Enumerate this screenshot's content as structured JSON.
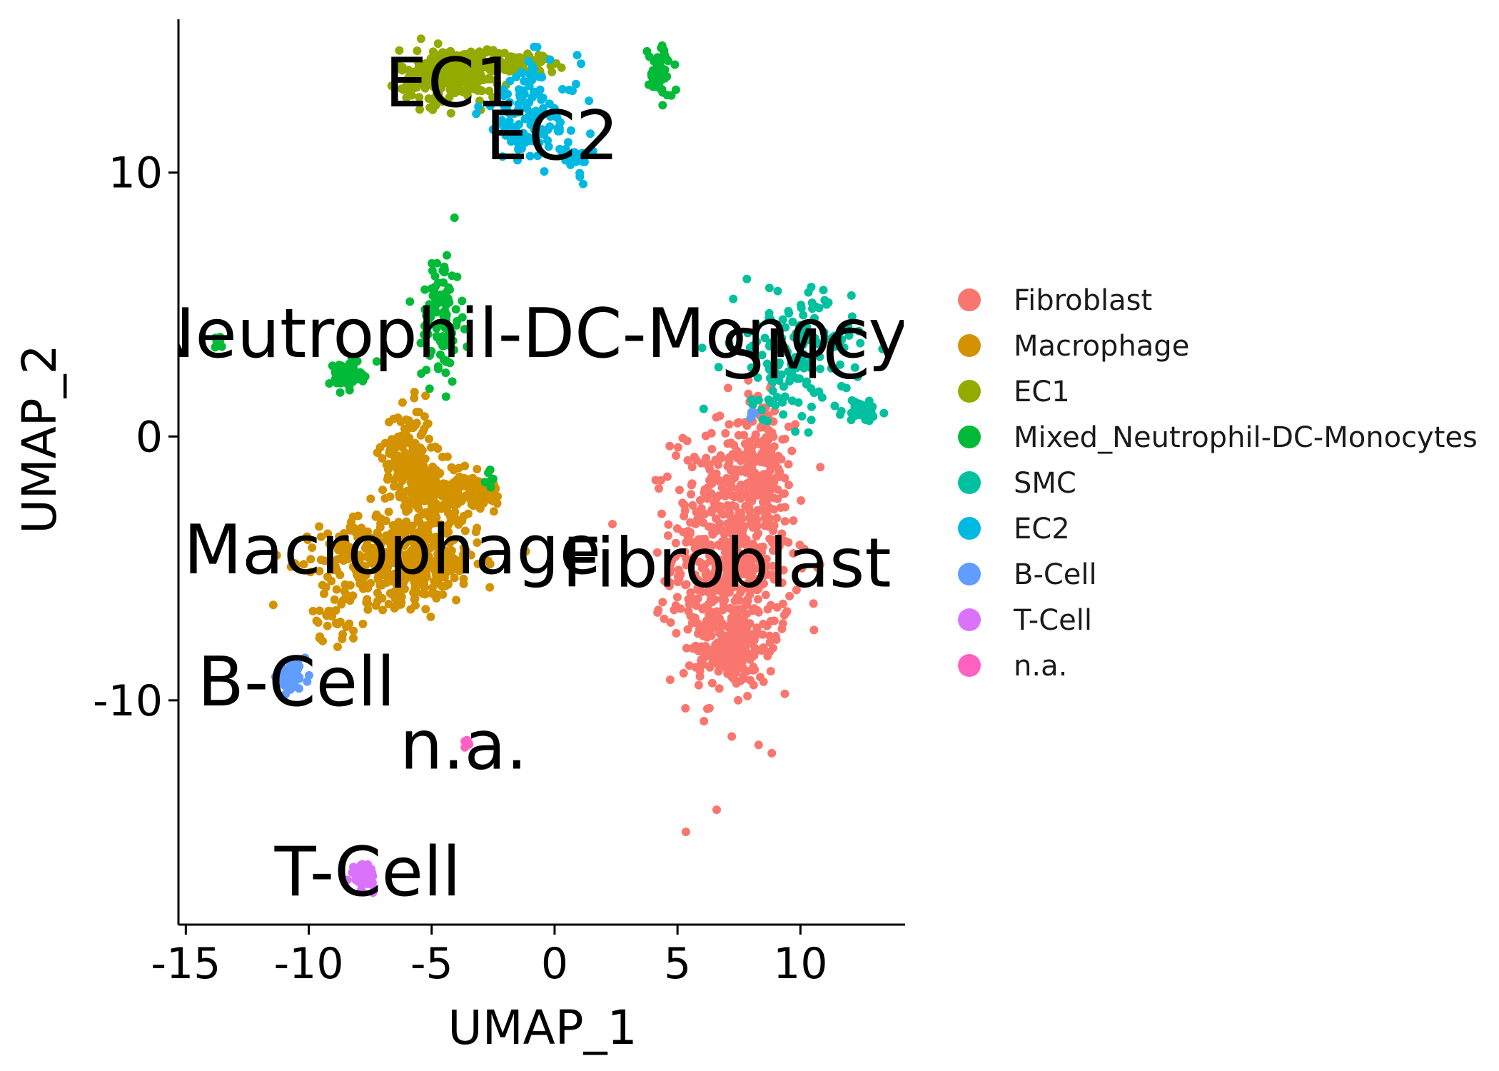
{
  "chart_data": {
    "type": "scatter",
    "xlabel": "UMAP_1",
    "ylabel": "UMAP_2",
    "xlim": [
      -15.3,
      14.2
    ],
    "ylim": [
      -18.5,
      16.0
    ],
    "x_ticks": [
      {
        "value": -15,
        "label": "-15"
      },
      {
        "value": -10,
        "label": "-10"
      },
      {
        "value": -5,
        "label": "-5"
      },
      {
        "value": 0,
        "label": "0"
      },
      {
        "value": 5,
        "label": "5"
      },
      {
        "value": 10,
        "label": "10"
      }
    ],
    "y_ticks": [
      {
        "value": -10,
        "label": "-10"
      },
      {
        "value": 0,
        "label": "0"
      },
      {
        "value": 10,
        "label": "10"
      }
    ],
    "grid": false,
    "legend_position": "right",
    "series": [
      {
        "name": "Fibroblast",
        "color": "#F8766D"
      },
      {
        "name": "Macrophage",
        "color": "#D39200"
      },
      {
        "name": "EC1",
        "color": "#93AA00"
      },
      {
        "name": "Mixed_Neutrophil-DC-Monocytes",
        "color": "#00BA38"
      },
      {
        "name": "SMC",
        "color": "#00C19F"
      },
      {
        "name": "EC2",
        "color": "#00B9E3"
      },
      {
        "name": "B-Cell",
        "color": "#619CFF"
      },
      {
        "name": "T-Cell",
        "color": "#DB72FB"
      },
      {
        "name": "n.a.",
        "color": "#FF61C3"
      }
    ],
    "clusters": [
      {
        "series": 0,
        "cx": 7.2,
        "cy": -4.5,
        "sx": 1.2,
        "sy": 2.5,
        "n": 700
      },
      {
        "series": 0,
        "cx": 8.4,
        "cy": -1.0,
        "sx": 0.5,
        "sy": 1.3,
        "n": 120
      },
      {
        "series": 0,
        "cx": 7.2,
        "cy": -8.0,
        "sx": 0.7,
        "sy": 0.7,
        "n": 140
      },
      {
        "series": 1,
        "cx": -6.3,
        "cy": -4.7,
        "sx": 1.6,
        "sy": 0.8,
        "n": 450
      },
      {
        "series": 1,
        "cx": -6.0,
        "cy": -0.7,
        "sx": 0.5,
        "sy": 0.9,
        "n": 160
      },
      {
        "series": 1,
        "cx": -4.8,
        "cy": -2.2,
        "sx": 0.7,
        "sy": 0.6,
        "n": 160
      },
      {
        "series": 1,
        "cx": -3.2,
        "cy": -2.1,
        "sx": 0.5,
        "sy": 0.3,
        "n": 60
      },
      {
        "series": 1,
        "cx": -8.9,
        "cy": -6.8,
        "sx": 0.5,
        "sy": 0.5,
        "n": 30
      },
      {
        "series": 2,
        "cx": -4.3,
        "cy": 13.7,
        "sx": 1.0,
        "sy": 0.5,
        "n": 300
      },
      {
        "series": 2,
        "cx": -1.8,
        "cy": 14.2,
        "sx": 1.1,
        "sy": 0.2,
        "n": 90
      },
      {
        "series": 3,
        "cx": -4.6,
        "cy": 4.5,
        "sx": 0.4,
        "sy": 1.3,
        "n": 100
      },
      {
        "series": 3,
        "cx": -8.5,
        "cy": 2.3,
        "sx": 0.35,
        "sy": 0.25,
        "n": 70
      },
      {
        "series": 3,
        "cx": -13.7,
        "cy": 3.6,
        "sx": 0.15,
        "sy": 0.12,
        "n": 10
      },
      {
        "series": 3,
        "cx": 4.3,
        "cy": 13.8,
        "sx": 0.25,
        "sy": 0.5,
        "n": 60
      },
      {
        "series": 3,
        "cx": -2.6,
        "cy": -1.6,
        "sx": 0.1,
        "sy": 0.2,
        "n": 6
      },
      {
        "series": 4,
        "cx": 9.7,
        "cy": 3.1,
        "sx": 1.2,
        "sy": 1.2,
        "n": 160
      },
      {
        "series": 4,
        "cx": 12.5,
        "cy": 1.0,
        "sx": 0.4,
        "sy": 0.2,
        "n": 50
      },
      {
        "series": 5,
        "cx": -1.0,
        "cy": 12.2,
        "sx": 1.0,
        "sy": 1.0,
        "n": 120
      },
      {
        "series": 5,
        "cx": 0.9,
        "cy": 10.5,
        "sx": 0.3,
        "sy": 0.3,
        "n": 20
      },
      {
        "series": 6,
        "cx": -10.7,
        "cy": -9.1,
        "sx": 0.3,
        "sy": 0.25,
        "n": 40
      },
      {
        "series": 6,
        "cx": 8.0,
        "cy": 0.8,
        "sx": 0.1,
        "sy": 0.08,
        "n": 5
      },
      {
        "series": 7,
        "cx": -7.8,
        "cy": -16.6,
        "sx": 0.25,
        "sy": 0.2,
        "n": 50
      },
      {
        "series": 8,
        "cx": -3.6,
        "cy": -11.6,
        "sx": 0.1,
        "sy": 0.1,
        "n": 8
      }
    ],
    "annotations": [
      {
        "text": "EC1",
        "x": -4.2,
        "y": 13.4
      },
      {
        "text": "EC2",
        "x": -0.1,
        "y": 11.4
      },
      {
        "text": "Mixed_Neutrophil-DC-Monocytes",
        "x": -3.8,
        "y": 3.9
      },
      {
        "text": "SMC",
        "x": 9.8,
        "y": 3.1
      },
      {
        "text": "Macrophage",
        "x": -6.6,
        "y": -4.3
      },
      {
        "text": "Fibroblast",
        "x": 7.0,
        "y": -4.8
      },
      {
        "text": "B-Cell",
        "x": -10.5,
        "y": -9.3
      },
      {
        "text": "n.a.",
        "x": -3.7,
        "y": -11.7
      },
      {
        "text": "T-Cell",
        "x": -7.6,
        "y": -16.5
      }
    ]
  }
}
